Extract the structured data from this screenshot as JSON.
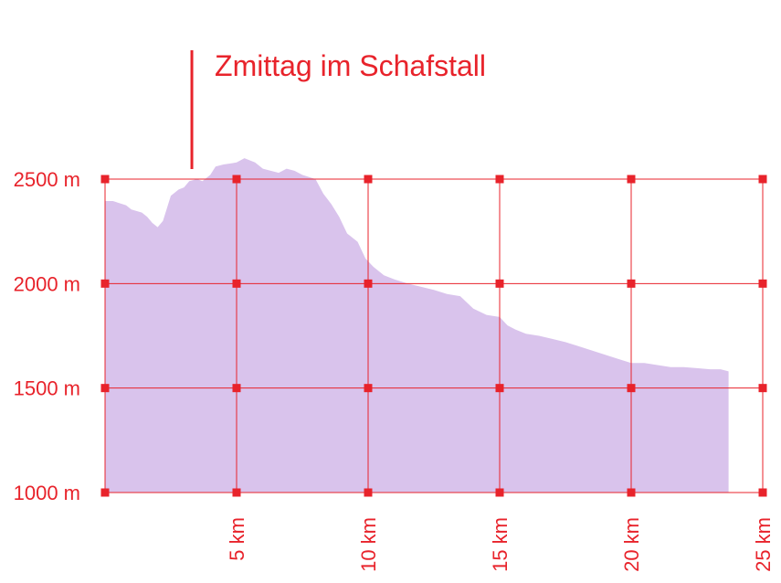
{
  "chart_data": {
    "type": "area",
    "title": "",
    "xlabel": "",
    "ylabel": "",
    "x_unit": "km",
    "y_unit": "m",
    "xlim": [
      0,
      25
    ],
    "ylim": [
      1000,
      2500
    ],
    "grid": true,
    "x_ticks": [
      5,
      10,
      15,
      20,
      25
    ],
    "x_tick_labels": [
      "5 km",
      "10 km",
      "15 km",
      "20 km",
      "25 km"
    ],
    "y_ticks": [
      1000,
      1500,
      2000,
      2500
    ],
    "y_tick_labels": [
      "1000 m",
      "1500 m",
      "2000 m",
      "2500 m"
    ],
    "colors": {
      "grid": "#e8232b",
      "area": "#d9c3ec",
      "text": "#e8232b"
    },
    "annotation": {
      "x": 3.3,
      "text": "Zmittag im Schafstall"
    },
    "series": [
      {
        "x": [
          0,
          0.3,
          0.8,
          1.0,
          1.4,
          1.6,
          1.8,
          2.0,
          2.2,
          2.5,
          2.8,
          3.0,
          3.2,
          3.5,
          3.7,
          4.0,
          4.2,
          4.5,
          4.8,
          5.0,
          5.3,
          5.7,
          6.0,
          6.3,
          6.6,
          6.9,
          7.2,
          7.5,
          8.0,
          8.3,
          8.6,
          8.9,
          9.2,
          9.6,
          9.9,
          10.2,
          10.6,
          11.0,
          11.5,
          12.0,
          12.5,
          13.0,
          13.5,
          14.0,
          14.5,
          15.0,
          15.3,
          15.6,
          16.0,
          16.5,
          17.0,
          17.5,
          18.0,
          18.5,
          19.0,
          19.5,
          20.0,
          20.5,
          21.0,
          21.5,
          22.0,
          22.5,
          23.0,
          23.4,
          23.7
        ],
        "y": [
          2395,
          2395,
          2375,
          2355,
          2340,
          2320,
          2290,
          2270,
          2300,
          2420,
          2450,
          2460,
          2490,
          2500,
          2490,
          2520,
          2560,
          2570,
          2575,
          2580,
          2600,
          2580,
          2550,
          2540,
          2530,
          2550,
          2540,
          2520,
          2500,
          2430,
          2380,
          2320,
          2240,
          2200,
          2120,
          2080,
          2040,
          2020,
          2000,
          1985,
          1970,
          1950,
          1940,
          1880,
          1850,
          1840,
          1800,
          1780,
          1760,
          1750,
          1735,
          1720,
          1700,
          1680,
          1660,
          1640,
          1620,
          1620,
          1610,
          1600,
          1600,
          1595,
          1590,
          1590,
          1580
        ]
      }
    ]
  }
}
